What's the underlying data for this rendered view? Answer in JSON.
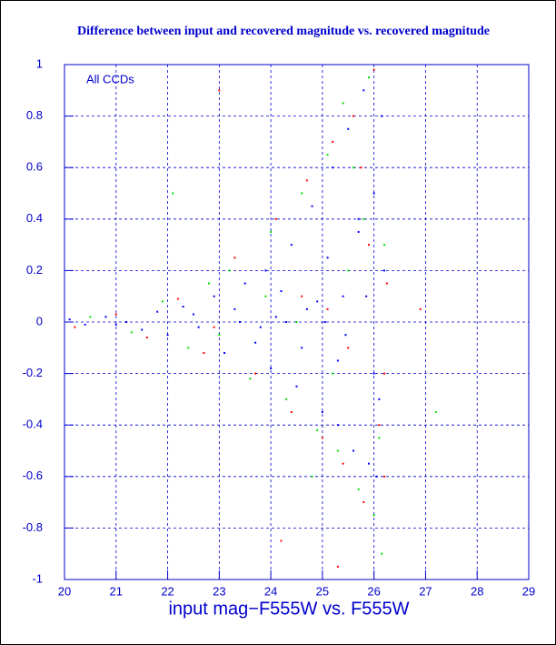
{
  "chart_data": {
    "type": "scatter",
    "title": "Difference between input and recovered magnitude vs. recovered magnitude",
    "x_label": "input mag−F555W vs. F555W",
    "annotation": "All CCDs",
    "xlim": [
      20,
      29
    ],
    "ylim": [
      -1,
      1
    ],
    "xticks": [
      20,
      21,
      22,
      23,
      24,
      25,
      26,
      27,
      28,
      29
    ],
    "yticks": [
      -1,
      -0.8,
      -0.6,
      -0.4,
      -0.2,
      0,
      0.2,
      0.4,
      0.6,
      0.8,
      1
    ],
    "grid": true,
    "series": [
      {
        "color": "#ff0000",
        "x": [
          20.2,
          21.0,
          21.6,
          22.2,
          22.7,
          23.3,
          23.7,
          24.1,
          24.4,
          24.7,
          25.0,
          25.2,
          25.4,
          25.6,
          25.8,
          26.0,
          26.2,
          26.25,
          23.0,
          24.2,
          25.1,
          25.5,
          25.9,
          26.1,
          22.9,
          24.6,
          25.3,
          25.75,
          26.2,
          26.9
        ],
        "values": [
          -0.02,
          0.03,
          -0.06,
          0.09,
          -0.12,
          0.25,
          -0.2,
          0.4,
          -0.35,
          0.55,
          -0.45,
          0.7,
          -0.55,
          0.8,
          -0.7,
          0.98,
          -0.6,
          0.15,
          0.9,
          -0.85,
          0.05,
          -0.1,
          0.3,
          -0.4,
          -0.02,
          0.1,
          -0.95,
          0.6,
          -0.2,
          0.05
        ]
      },
      {
        "color": "#00dd00",
        "x": [
          20.5,
          21.3,
          21.9,
          22.4,
          22.8,
          23.2,
          23.6,
          24.0,
          24.3,
          24.6,
          24.9,
          25.1,
          25.3,
          25.5,
          25.7,
          25.9,
          26.1,
          26.2,
          22.1,
          23.0,
          23.9,
          24.8,
          25.4,
          25.8,
          26.0,
          24.5,
          25.2,
          25.6,
          26.15,
          27.2
        ],
        "values": [
          0.02,
          -0.04,
          0.08,
          -0.1,
          0.15,
          0.2,
          -0.22,
          0.35,
          -0.3,
          0.5,
          -0.42,
          0.65,
          -0.5,
          0.2,
          -0.65,
          0.95,
          -0.45,
          0.3,
          0.5,
          -0.05,
          0.1,
          -0.6,
          0.85,
          0.4,
          -0.75,
          0.0,
          -0.2,
          0.6,
          -0.9,
          -0.35
        ]
      },
      {
        "color": "#0000ff",
        "x": [
          20.1,
          20.4,
          20.8,
          21.2,
          21.5,
          21.8,
          22.0,
          22.3,
          22.6,
          22.9,
          23.1,
          23.3,
          23.5,
          23.7,
          23.9,
          24.0,
          24.2,
          24.4,
          24.5,
          24.7,
          24.8,
          25.0,
          25.1,
          25.2,
          25.3,
          25.4,
          25.5,
          25.6,
          25.7,
          25.8,
          25.9,
          26.0,
          26.1,
          26.2,
          23.4,
          24.1,
          24.6,
          25.05,
          25.45,
          25.85,
          26.05,
          26.15,
          22.5,
          23.8,
          24.9,
          25.3,
          25.7,
          26.0,
          21.0,
          24.3
        ],
        "values": [
          0.01,
          -0.01,
          0.02,
          0.0,
          -0.03,
          0.04,
          -0.05,
          0.06,
          -0.02,
          0.1,
          -0.12,
          0.05,
          0.15,
          -0.08,
          0.2,
          -0.18,
          0.12,
          0.3,
          -0.25,
          0.05,
          0.45,
          -0.35,
          0.25,
          0.6,
          -0.4,
          0.1,
          0.75,
          -0.5,
          0.35,
          0.9,
          -0.55,
          0.5,
          -0.3,
          0.2,
          0.0,
          0.02,
          -0.1,
          0.0,
          -0.05,
          0.1,
          -0.6,
          0.8,
          0.03,
          -0.02,
          0.08,
          -0.15,
          0.4,
          -0.2,
          -0.01,
          0.0
        ]
      }
    ]
  }
}
